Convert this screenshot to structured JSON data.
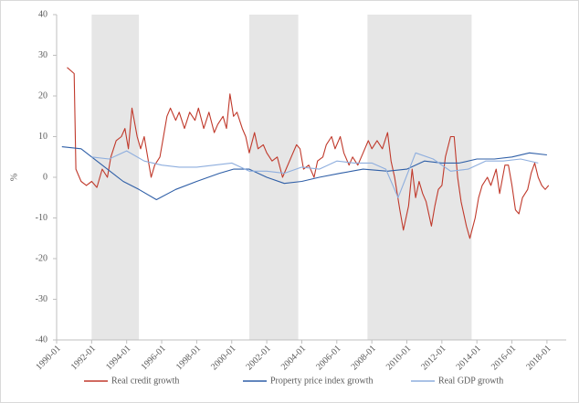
{
  "chart_data": {
    "type": "line",
    "y_label": "%",
    "xlim": [
      1990,
      2019.1
    ],
    "xticks": [
      {
        "value": 1990,
        "label": "1990-01"
      },
      {
        "value": 1992,
        "label": "1992-01"
      },
      {
        "value": 1994,
        "label": "1994-01"
      },
      {
        "value": 1996,
        "label": "1996-01"
      },
      {
        "value": 1998,
        "label": "1998-01"
      },
      {
        "value": 2000,
        "label": "2000-01"
      },
      {
        "value": 2002,
        "label": "2002-01"
      },
      {
        "value": 2004,
        "label": "2004-01"
      },
      {
        "value": 2006,
        "label": "2006-01"
      },
      {
        "value": 2008,
        "label": "2008-01"
      },
      {
        "value": 2010,
        "label": "2010-01"
      },
      {
        "value": 2012,
        "label": "2012-01"
      },
      {
        "value": 2014,
        "label": "2014-01"
      },
      {
        "value": 2016,
        "label": "2016-01"
      },
      {
        "value": 2018,
        "label": "2018-01"
      }
    ],
    "ylim": [
      -40,
      40
    ],
    "yticks": [
      -40,
      -30,
      -20,
      -10,
      0,
      10,
      20,
      30,
      40
    ],
    "grid": false,
    "legend": "bottom",
    "shaded_periods": [
      [
        1992.0,
        1994.7
      ],
      [
        2001.0,
        2003.8
      ],
      [
        2007.75,
        2013.7
      ]
    ],
    "shade_color": "#e6e6e6",
    "series": [
      {
        "name": "Real credit growth",
        "color": "#c0392b",
        "x": [
          1990.6,
          1991.0,
          1991.1,
          1991.4,
          1991.7,
          1992.0,
          1992.3,
          1992.6,
          1992.9,
          1993.1,
          1993.4,
          1993.7,
          1993.9,
          1994.1,
          1994.3,
          1994.6,
          1994.8,
          1995.0,
          1995.2,
          1995.4,
          1995.6,
          1995.9,
          1996.1,
          1996.3,
          1996.5,
          1996.8,
          1997.0,
          1997.3,
          1997.6,
          1997.9,
          1998.1,
          1998.4,
          1998.7,
          1999.0,
          1999.2,
          1999.5,
          1999.7,
          1999.9,
          2000.1,
          2000.3,
          2000.6,
          2000.8,
          2001.0,
          2001.3,
          2001.5,
          2001.8,
          2002.0,
          2002.3,
          2002.6,
          2002.9,
          2003.1,
          2003.4,
          2003.7,
          2003.9,
          2004.1,
          2004.4,
          2004.7,
          2004.9,
          2005.2,
          2005.4,
          2005.7,
          2005.9,
          2006.2,
          2006.4,
          2006.7,
          2006.9,
          2007.2,
          2007.5,
          2007.8,
          2008.0,
          2008.3,
          2008.6,
          2008.9,
          2009.1,
          2009.3,
          2009.6,
          2009.8,
          2010.1,
          2010.3,
          2010.5,
          2010.7,
          2010.9,
          2011.1,
          2011.4,
          2011.6,
          2011.8,
          2012.0,
          2012.2,
          2012.5,
          2012.7,
          2012.9,
          2013.1,
          2013.4,
          2013.6,
          2013.9,
          2014.1,
          2014.3,
          2014.6,
          2014.8,
          2015.1,
          2015.3,
          2015.6,
          2015.8,
          2016.0,
          2016.2,
          2016.4,
          2016.6,
          2016.9,
          2017.1,
          2017.3,
          2017.5,
          2017.7,
          2017.9,
          2018.1
        ],
        "values": [
          27,
          25.5,
          2,
          -1,
          -2,
          -1,
          -2.5,
          2,
          0,
          5,
          9,
          10,
          12,
          7,
          17,
          10,
          7,
          10,
          5,
          0,
          3,
          5,
          10,
          15,
          17,
          14,
          16,
          12,
          16,
          14,
          17,
          12,
          16,
          11,
          13,
          15,
          12,
          20.5,
          15,
          16,
          12,
          10,
          6,
          11,
          7,
          8,
          6,
          4,
          5,
          0,
          2,
          5,
          8,
          7,
          2,
          3,
          0,
          4,
          5,
          8,
          10,
          7,
          10,
          6,
          3,
          5,
          3,
          6,
          9,
          7,
          9,
          7,
          11,
          4,
          0,
          -8,
          -13,
          -7,
          2,
          -5,
          -1,
          -4,
          -6,
          -12,
          -7,
          -3,
          -2,
          5,
          10,
          10,
          0,
          -6,
          -12,
          -15,
          -10,
          -5,
          -2,
          0,
          -2,
          2,
          -4,
          3,
          3,
          -2,
          -8,
          -9,
          -5,
          -3,
          1,
          3.5,
          0,
          -2,
          -3,
          -2
        ]
      },
      {
        "name": "Property price index growth",
        "color": "#2f5fa7",
        "x": [
          1990.3,
          1991.4,
          1992.6,
          1993.8,
          1994.7,
          1995.7,
          1996.8,
          1998.0,
          1999.3,
          2000.1,
          2001.0,
          2002.0,
          2003.0,
          2004.0,
          2005.0,
          2006.2,
          2007.5,
          2008.9,
          2010.0,
          2011.0,
          2012.0,
          2013.0,
          2014.0,
          2015.0,
          2016.0,
          2017.0,
          2018.0
        ],
        "values": [
          7.5,
          7,
          3,
          -1,
          -3,
          -5.5,
          -3,
          -1,
          1,
          2,
          2,
          0,
          -1.5,
          -1,
          0,
          1,
          2,
          1.5,
          2,
          4,
          3.5,
          3.5,
          4.5,
          4.5,
          5,
          6,
          5.5
        ]
      },
      {
        "name": "Real GDP growth",
        "color": "#8eaede",
        "x": [
          1992.0,
          1993.0,
          1994.0,
          1995.0,
          1996.0,
          1997.0,
          1998.0,
          1999.0,
          2000.0,
          2001.0,
          2002.0,
          2003.0,
          2004.0,
          2005.0,
          2006.0,
          2007.0,
          2008.0,
          2008.8,
          2009.5,
          2010.5,
          2011.5,
          2012.5,
          2013.5,
          2014.5,
          2015.5,
          2016.5,
          2017.5
        ],
        "values": [
          5,
          4.5,
          6.5,
          4,
          3,
          2.5,
          2.5,
          3,
          3.5,
          1.5,
          1.5,
          1,
          2.5,
          2,
          4,
          3.5,
          3.5,
          2,
          -5,
          6,
          4.5,
          1.5,
          2,
          4,
          4,
          4.5,
          3.5
        ]
      }
    ]
  }
}
